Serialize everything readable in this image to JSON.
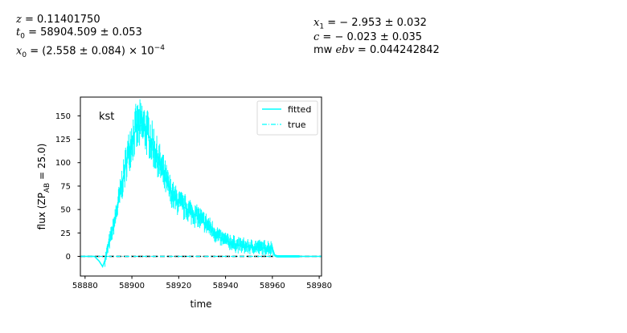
{
  "params": {
    "z": "0.11401750",
    "t0": "58904.509 ± 0.053",
    "x0": "(2.558 ± 0.084) × 10",
    "x0_exp": "−4",
    "x1": "− 2.953 ± 0.032",
    "c": "− 0.023 ± 0.035",
    "mwebv": "0.044242842"
  },
  "chart_data": {
    "type": "line",
    "band_label": "kst",
    "xlabel": "time",
    "ylabel": "flux (ZP",
    "ylabel_sub": "AB",
    "ylabel_tail": " = 25.0)",
    "xlim": [
      58878,
      58981
    ],
    "ylim": [
      -21,
      170
    ],
    "xticks": [
      58880,
      58900,
      58920,
      58940,
      58960,
      58980
    ],
    "yticks": [
      0,
      25,
      50,
      75,
      100,
      125,
      150
    ],
    "legend": {
      "placement": "top-right",
      "entries": [
        "fitted",
        "true"
      ]
    },
    "grid": false,
    "zero_line": {
      "y": 0,
      "style": "dashed",
      "color": "#000000"
    },
    "colors": {
      "fitted": "#00ffff",
      "true": "#00ffff",
      "data": "#00ffff"
    },
    "series": [
      {
        "name": "fitted",
        "x": [
          58878,
          58884,
          58886,
          58887.5,
          58888.5,
          58890,
          58892,
          58894,
          58896,
          58898,
          58900,
          58902,
          58904,
          58906,
          58908,
          58910,
          58912,
          58914,
          58916,
          58918,
          58920,
          58922,
          58924,
          58926,
          58928,
          58930,
          58932,
          58934,
          58936,
          58938,
          58940,
          58942,
          58944,
          58946,
          58948,
          58950,
          58952,
          58954,
          58956,
          58958,
          58960,
          58961,
          58962,
          58966,
          58970,
          58971.5,
          58981
        ],
        "y": [
          0,
          0,
          -5,
          -11,
          -4,
          12,
          30,
          55,
          80,
          105,
          125,
          137,
          140,
          135,
          125,
          112,
          98,
          85,
          72,
          62,
          58,
          53,
          50,
          46,
          43,
          38,
          34,
          29,
          24,
          19,
          17,
          15,
          13,
          12,
          11,
          10,
          10,
          10,
          9,
          9,
          9,
          1,
          0,
          0,
          0,
          0,
          0
        ]
      },
      {
        "name": "true",
        "x": [
          58878,
          58981
        ],
        "y": [
          0,
          0
        ]
      }
    ]
  }
}
